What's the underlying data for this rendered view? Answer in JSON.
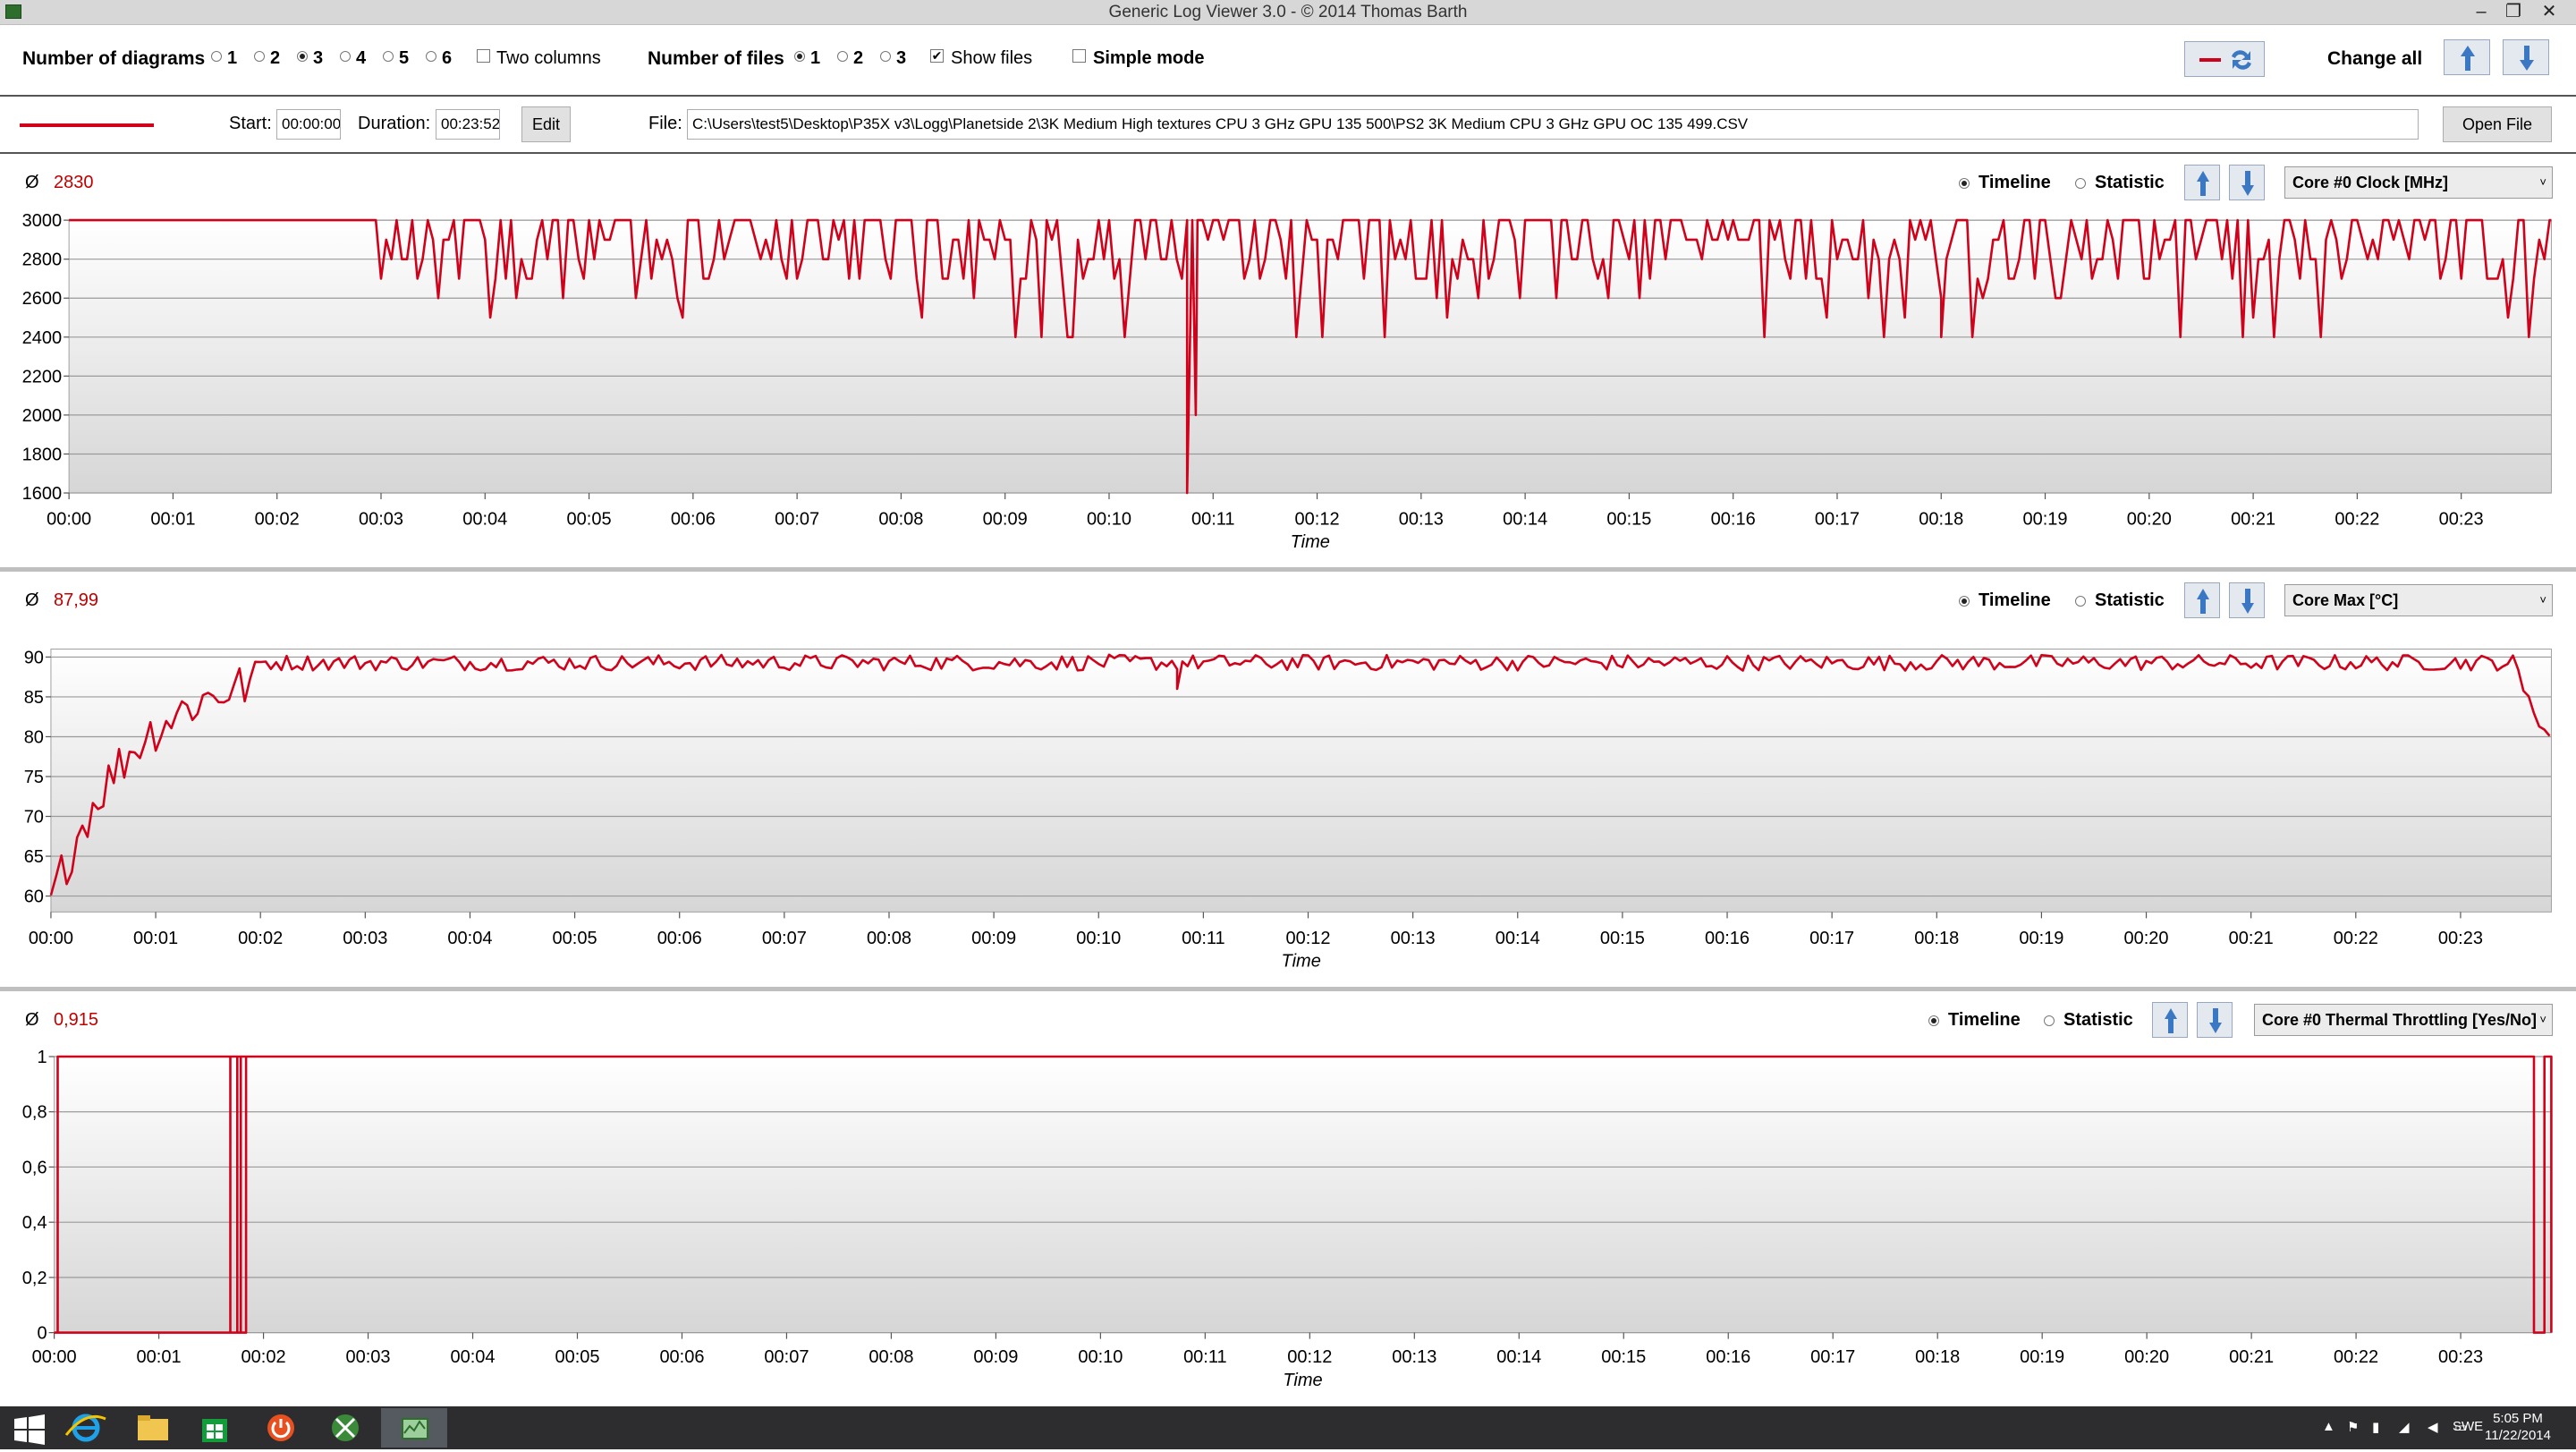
{
  "window": {
    "title": "Generic Log Viewer 3.0 - © 2014 Thomas Barth"
  },
  "toolbar": {
    "num_diagrams_label": "Number of diagrams",
    "diagram_options": [
      "1",
      "2",
      "3",
      "4",
      "5",
      "6"
    ],
    "diagram_selected": "3",
    "two_columns_label": "Two columns",
    "num_files_label": "Number of files",
    "file_options": [
      "1",
      "2",
      "3"
    ],
    "file_selected": "1",
    "show_files_label": "Show files",
    "show_files_checked": true,
    "simple_mode_label": "Simple mode",
    "simple_mode_checked": false,
    "change_all_label": "Change all"
  },
  "filebar": {
    "line_color": "#d0021b",
    "start_label": "Start:",
    "start_value": "00:00:00",
    "duration_label": "Duration:",
    "duration_value": "00:23:52",
    "edit_label": "Edit",
    "file_label": "File:",
    "file_path": "C:\\Users\\test5\\Desktop\\P35X v3\\Logg\\Planetside 2\\3K Medium High textures CPU 3 GHz GPU 135 500\\PS2 3K Medium CPU 3 GHz GPU OC 135 499.CSV",
    "open_file_label": "Open File"
  },
  "panels": [
    {
      "avg_symbol": "Ø",
      "avg_value": "2830",
      "timeline_label": "Timeline",
      "statistic_label": "Statistic",
      "sensor": "Core #0 Clock [MHz]",
      "yticks": [
        "3000",
        "2800",
        "2600",
        "2400",
        "2200",
        "2000",
        "1800",
        "1600"
      ]
    },
    {
      "avg_symbol": "Ø",
      "avg_value": "87,99",
      "timeline_label": "Timeline",
      "statistic_label": "Statistic",
      "sensor": "Core Max [°C]",
      "yticks": [
        "90",
        "85",
        "80",
        "75",
        "70",
        "65",
        "60"
      ]
    },
    {
      "avg_symbol": "Ø",
      "avg_value": "0,915",
      "timeline_label": "Timeline",
      "statistic_label": "Statistic",
      "sensor": "Core #0 Thermal Throttling [Yes/No]",
      "yticks": [
        "1",
        "0,8",
        "0,6",
        "0,4",
        "0,2",
        "0"
      ]
    }
  ],
  "xticks": [
    "00:00",
    "00:01",
    "00:02",
    "00:03",
    "00:04",
    "00:05",
    "00:06",
    "00:07",
    "00:08",
    "00:09",
    "00:10",
    "00:11",
    "00:12",
    "00:13",
    "00:14",
    "00:15",
    "00:16",
    "00:17",
    "00:18",
    "00:19",
    "00:20",
    "00:21",
    "00:22",
    "00:23"
  ],
  "xlabel": "Time",
  "chart_data": [
    {
      "type": "line",
      "series": [
        {
          "values_summary": "3000 MHz until ~00:03, then fluctuating 2600-3000 MHz with dips to ~2400; minimum spike to 1600 near 00:10:45"
        }
      ],
      "ylim": [
        1600,
        3000
      ],
      "xlim": [
        "00:00:00",
        "00:23:52"
      ],
      "key_points": [
        [
          "00:00",
          3000
        ],
        [
          "00:02:58",
          3000
        ],
        [
          "00:03",
          2500
        ],
        [
          "00:10:45",
          1600
        ],
        [
          "00:10:50",
          2000
        ],
        [
          "00:11",
          3000
        ],
        [
          "00:18",
          2400
        ],
        [
          "00:23:52",
          3000
        ]
      ]
    },
    {
      "type": "line",
      "ylim": [
        58,
        91
      ],
      "xlim": [
        "00:00:00",
        "00:23:52"
      ],
      "key_points": [
        [
          "00:00",
          59
        ],
        [
          "00:00:10",
          64
        ],
        [
          "00:00:20",
          60
        ],
        [
          "00:00:30",
          71
        ],
        [
          "00:00:40",
          68
        ],
        [
          "00:01",
          78
        ],
        [
          "00:01:30",
          86
        ],
        [
          "00:02",
          89
        ],
        [
          "00:03",
          90
        ],
        [
          "00:10:45",
          86
        ],
        [
          "00:23:40",
          89
        ],
        [
          "00:23:45",
          84
        ],
        [
          "00:23:50",
          88
        ],
        [
          "00:23:52",
          77
        ]
      ]
    },
    {
      "type": "line",
      "ylim": [
        0,
        1
      ],
      "xlim": [
        "00:00:00",
        "00:23:52"
      ],
      "key_points": [
        [
          "00:00",
          0
        ],
        [
          "00:01:40",
          0
        ],
        [
          "00:01:41",
          1
        ],
        [
          "00:01:45",
          0
        ],
        [
          "00:01:47",
          1
        ],
        [
          "00:01:50",
          0
        ],
        [
          "00:02",
          1
        ],
        [
          "00:23:40",
          1
        ],
        [
          "00:23:42",
          0
        ],
        [
          "00:23:48",
          1
        ],
        [
          "00:23:52",
          0
        ]
      ]
    }
  ],
  "taskbar": {
    "lang": "SWE",
    "time": "5:05 PM",
    "date": "11/22/2014"
  }
}
